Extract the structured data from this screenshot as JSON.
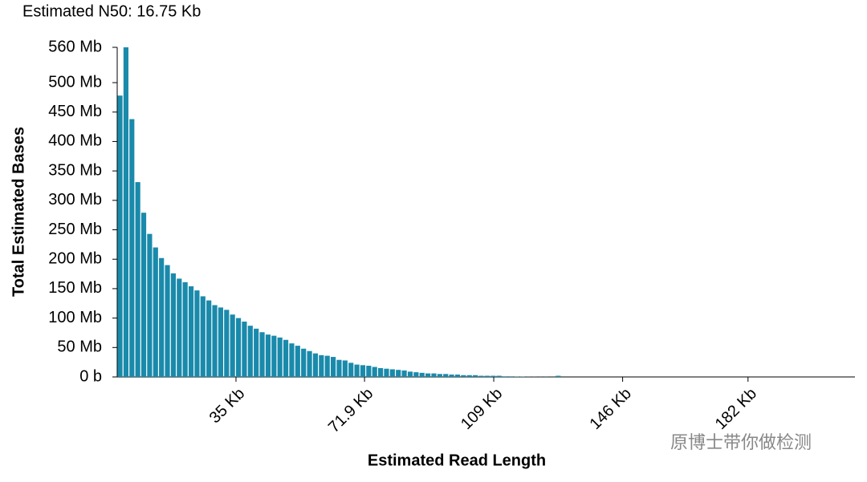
{
  "chart_data": {
    "type": "histogram",
    "title": "Estimated N50: 16.75 Kb",
    "x_label": "Estimated Read Length",
    "y_label": "Total Estimated Bases",
    "watermark": "原博士带你做检测",
    "color": "#1a8aab",
    "bins": [
      1,
      2.7,
      4.4,
      6.1,
      7.8,
      9.5,
      11.2,
      12.9,
      14.6,
      16.3,
      18,
      19.7,
      21.4,
      23.1,
      24.8,
      26.5,
      28.2,
      29.9,
      31.6,
      33.3,
      35,
      36.7,
      38.4,
      40.1,
      41.8,
      43.5,
      45.2,
      46.9,
      48.6,
      50.3,
      52,
      53.7,
      55.4,
      57.1,
      58.8,
      60.5,
      62.2,
      63.9,
      65.6,
      67.3,
      69,
      70.7,
      72.4,
      74.1,
      75.8,
      77.5,
      79.2,
      80.9,
      82.6,
      84.3,
      86,
      87.7,
      89.4,
      91.1,
      92.8,
      94.5,
      96.2,
      97.9,
      99.6,
      101.3,
      103,
      104.7,
      106.4,
      108.1,
      109.8,
      111.5,
      113.2,
      114.9,
      116.6,
      118.3,
      120,
      121.7,
      123.4,
      125.1,
      126.8,
      128.5
    ],
    "values": [
      478,
      560,
      438,
      331,
      279,
      243,
      220,
      202,
      190,
      176,
      167,
      161,
      154,
      147,
      137,
      130,
      122,
      118,
      114,
      106,
      100,
      94,
      87,
      82,
      76,
      72,
      70,
      67,
      63,
      57,
      53,
      48,
      44,
      40,
      37,
      36,
      34,
      29,
      28,
      24,
      21,
      20,
      19,
      17,
      15,
      14,
      13,
      12,
      11,
      9,
      8,
      7,
      6,
      6,
      5,
      5,
      4,
      4,
      3,
      3,
      3,
      2,
      2,
      2,
      2,
      1,
      1,
      0.5,
      0.5,
      0.3,
      0.3,
      0.2,
      0.2,
      0.1,
      2
    ],
    "xlim": [
      0.9,
      212.7
    ],
    "xticks": [
      {
        "value": 35,
        "label": "35 Kb"
      },
      {
        "value": 71.9,
        "label": "71.9 Kb"
      },
      {
        "value": 109,
        "label": "109 Kb"
      },
      {
        "value": 146,
        "label": "146 Kb"
      },
      {
        "value": 182,
        "label": "182 Kb"
      }
    ],
    "ylim": [
      0,
      560
    ],
    "yticks": [
      {
        "value": 0,
        "label": "0 b"
      },
      {
        "value": 50,
        "label": "50 Mb"
      },
      {
        "value": 100,
        "label": "100 Mb"
      },
      {
        "value": 150,
        "label": "150 Mb"
      },
      {
        "value": 200,
        "label": "200 Mb"
      },
      {
        "value": 250,
        "label": "250 Mb"
      },
      {
        "value": 300,
        "label": "300 Mb"
      },
      {
        "value": 350,
        "label": "350 Mb"
      },
      {
        "value": 400,
        "label": "400 Mb"
      },
      {
        "value": 450,
        "label": "450 Mb"
      },
      {
        "value": 500,
        "label": "500 Mb"
      },
      {
        "value": 560,
        "label": "560 Mb"
      }
    ]
  }
}
